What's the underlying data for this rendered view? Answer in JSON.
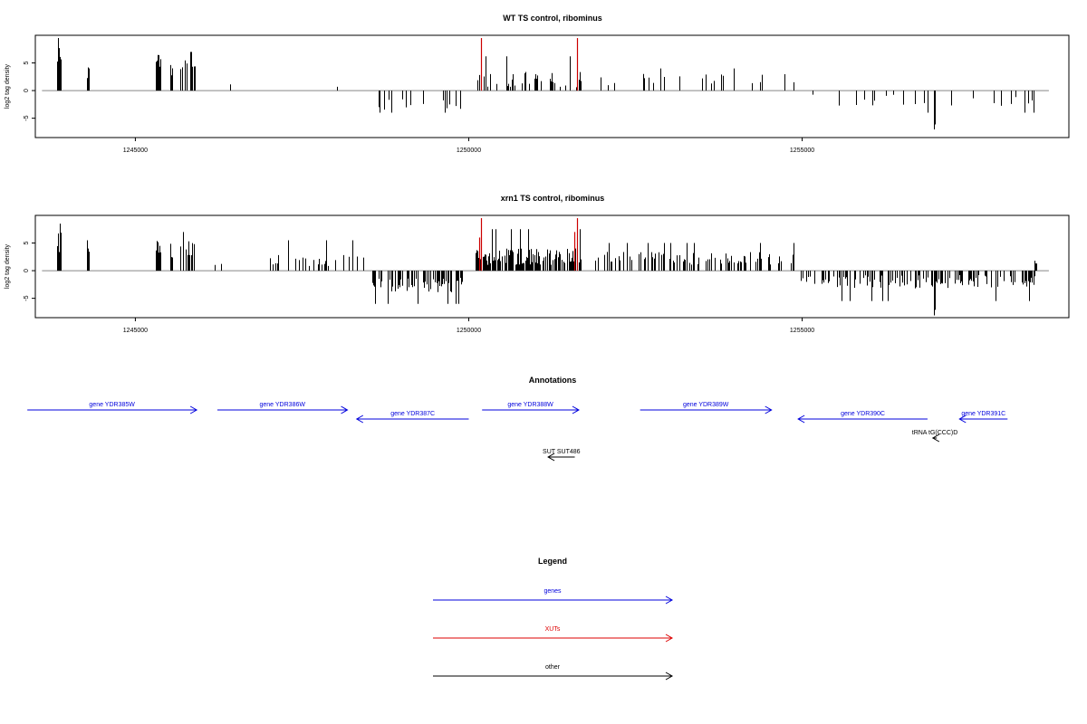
{
  "chart_data": [
    {
      "type": "bar",
      "title": "WT TS control, ribominus",
      "xlabel": "",
      "ylabel": "log2 tag density",
      "xlim": [
        1243500,
        1259000
      ],
      "ylim": [
        -8.5,
        10.0
      ],
      "xticks": [
        1245000,
        1250000,
        1255000
      ],
      "xtick_labels": [
        "1245000",
        "1250000",
        "1255000"
      ],
      "yticks": [
        -5,
        0,
        5
      ],
      "ytick_labels": [
        "-5",
        "0",
        "5"
      ],
      "baseline": {
        "x_range": [
          1243600,
          1258700
        ],
        "color": "#888888"
      },
      "colors": {
        "bars": "#000000",
        "highlight": "#cc0000"
      },
      "highlights": [
        {
          "x": 1250180,
          "value": 9.5
        },
        {
          "x": 1251620,
          "value": 9.5
        }
      ],
      "regions": [
        {
          "x_range": [
            1243830,
            1243890
          ],
          "density": 1.0,
          "mean": 6.0,
          "spread": 2.5,
          "peak": 9.5,
          "seed": 1
        },
        {
          "x_range": [
            1244280,
            1244320
          ],
          "density": 1.0,
          "mean": 3.2,
          "spread": 1.5,
          "peak": 6.2,
          "seed": 2
        },
        {
          "x_range": [
            1245300,
            1245370
          ],
          "density": 1.0,
          "mean": 4.5,
          "spread": 2.0,
          "peak": 6.6,
          "seed": 3
        },
        {
          "x_range": [
            1245520,
            1245560
          ],
          "density": 1.0,
          "mean": 3.8,
          "spread": 1.6,
          "peak": 5.5,
          "seed": 4
        },
        {
          "x_range": [
            1245680,
            1245900
          ],
          "density": 0.7,
          "mean": 3.8,
          "spread": 2.2,
          "peak": 7.0,
          "seed": 5
        },
        {
          "x_range": [
            1246400,
            1247600
          ],
          "density": 0.015,
          "mean": 1.3,
          "spread": 0.8,
          "peak": 3.5,
          "seed": 6
        },
        {
          "x_range": [
            1247600,
            1248500
          ],
          "density": 0.02,
          "mean": 1.2,
          "spread": 0.9,
          "peak": 3.6,
          "seed": 7
        },
        {
          "x_range": [
            1248550,
            1249900
          ],
          "density": 0.12,
          "mean": -2.3,
          "spread": 1.3,
          "peak": -4.0,
          "seed": 8
        },
        {
          "x_range": [
            1250100,
            1251700
          ],
          "density": 0.25,
          "mean": 2.0,
          "spread": 1.4,
          "peak": 6.2,
          "seed": 9
        },
        {
          "x_range": [
            1251900,
            1254900
          ],
          "density": 0.1,
          "mean": 2.0,
          "spread": 1.1,
          "peak": 4.0,
          "seed": 10
        },
        {
          "x_range": [
            1254950,
            1258500
          ],
          "density": 0.09,
          "mean": -1.7,
          "spread": 1.1,
          "peak": -4.0,
          "seed": 11
        },
        {
          "x_range": [
            1256970,
            1256990
          ],
          "density": 1.0,
          "mean": -7.0,
          "spread": 1.5,
          "peak": -8.1,
          "seed": 12
        }
      ]
    },
    {
      "type": "bar",
      "title": "xrn1 TS control, ribominus",
      "xlabel": "",
      "ylabel": "log2 tag density",
      "xlim": [
        1243500,
        1259000
      ],
      "ylim": [
        -8.5,
        10.0
      ],
      "xticks": [
        1245000,
        1250000,
        1255000
      ],
      "xtick_labels": [
        "1245000",
        "1250000",
        "1255000"
      ],
      "yticks": [
        -5,
        0,
        5
      ],
      "ytick_labels": [
        "-5",
        "0",
        "5"
      ],
      "baseline": {
        "x_range": [
          1243600,
          1258700
        ],
        "color": "#888888"
      },
      "colors": {
        "bars": "#000000",
        "highlight": "#cc0000"
      },
      "highlights": [
        {
          "x": 1250150,
          "value": 6.0
        },
        {
          "x": 1250180,
          "value": 9.5
        },
        {
          "x": 1251580,
          "value": 7.0
        },
        {
          "x": 1251620,
          "value": 9.5
        }
      ],
      "regions": [
        {
          "x_range": [
            1243830,
            1243890
          ],
          "density": 1.0,
          "mean": 5.5,
          "spread": 2.5,
          "peak": 8.5,
          "seed": 21
        },
        {
          "x_range": [
            1244280,
            1244320
          ],
          "density": 1.0,
          "mean": 3.2,
          "spread": 1.5,
          "peak": 5.5,
          "seed": 22
        },
        {
          "x_range": [
            1245300,
            1245370
          ],
          "density": 1.0,
          "mean": 4.5,
          "spread": 2.0,
          "peak": 6.6,
          "seed": 23
        },
        {
          "x_range": [
            1245520,
            1245560
          ],
          "density": 1.0,
          "mean": 3.8,
          "spread": 1.6,
          "peak": 5.5,
          "seed": 24
        },
        {
          "x_range": [
            1245680,
            1245900
          ],
          "density": 0.7,
          "mean": 3.8,
          "spread": 2.2,
          "peak": 7.0,
          "seed": 25
        },
        {
          "x_range": [
            1246000,
            1247000
          ],
          "density": 0.05,
          "mean": 1.5,
          "spread": 0.9,
          "peak": 3.5,
          "seed": 26
        },
        {
          "x_range": [
            1247000,
            1248500
          ],
          "density": 0.3,
          "mean": 1.8,
          "spread": 1.2,
          "peak": 5.5,
          "seed": 27
        },
        {
          "x_range": [
            1248500,
            1249900
          ],
          "density": 0.5,
          "mean": -2.6,
          "spread": 1.3,
          "peak": -6.0,
          "seed": 28
        },
        {
          "x_range": [
            1250100,
            1251700
          ],
          "density": 0.8,
          "mean": 2.5,
          "spread": 1.5,
          "peak": 7.5,
          "seed": 29
        },
        {
          "x_range": [
            1251900,
            1254900
          ],
          "density": 0.35,
          "mean": 2.2,
          "spread": 1.2,
          "peak": 5.0,
          "seed": 30
        },
        {
          "x_range": [
            1254950,
            1258500
          ],
          "density": 0.4,
          "mean": -2.0,
          "spread": 1.2,
          "peak": -5.5,
          "seed": 31
        },
        {
          "x_range": [
            1256970,
            1256990
          ],
          "density": 1.0,
          "mean": -7.0,
          "spread": 1.5,
          "peak": -8.1,
          "seed": 32
        },
        {
          "x_range": [
            1258480,
            1258520
          ],
          "density": 1.0,
          "mean": 1.2,
          "spread": 0.5,
          "peak": 1.8,
          "seed": 33
        }
      ]
    }
  ],
  "annotations": {
    "title": "Annotations",
    "features": [
      {
        "label": "gene YDR385W",
        "kind": "genes",
        "strand": "+",
        "start": 1243380,
        "end": 1245920,
        "row": 0
      },
      {
        "label": "gene YDR386W",
        "kind": "genes",
        "strand": "+",
        "start": 1246230,
        "end": 1248180,
        "row": 0
      },
      {
        "label": "gene YDR387C",
        "kind": "genes",
        "strand": "-",
        "start": 1248320,
        "end": 1250000,
        "row": 1
      },
      {
        "label": "gene YDR388W",
        "kind": "genes",
        "strand": "+",
        "start": 1250200,
        "end": 1251650,
        "row": 0
      },
      {
        "label": "gene YDR389W",
        "kind": "genes",
        "strand": "+",
        "start": 1252570,
        "end": 1254540,
        "row": 0
      },
      {
        "label": "gene YDR390C",
        "kind": "genes",
        "strand": "-",
        "start": 1254940,
        "end": 1256880,
        "row": 1
      },
      {
        "label": "gene YDR391C",
        "kind": "genes",
        "strand": "-",
        "start": 1257360,
        "end": 1258080,
        "row": 1
      },
      {
        "label": "tRNA tG(CCC)D",
        "kind": "other",
        "strand": "-",
        "start": 1256960,
        "end": 1257020,
        "row": 2
      },
      {
        "label": "SUT SUT486",
        "kind": "other",
        "strand": "-",
        "start": 1251190,
        "end": 1251590,
        "row": 3
      }
    ]
  },
  "legend": {
    "title": "Legend",
    "entries": [
      {
        "label": "genes",
        "kind": "genes"
      },
      {
        "label": "XUTs",
        "kind": "xuts"
      },
      {
        "label": "other",
        "kind": "other"
      }
    ]
  },
  "colors": {
    "genes": "#0000dd",
    "xuts": "#dd0000",
    "other": "#000000"
  }
}
